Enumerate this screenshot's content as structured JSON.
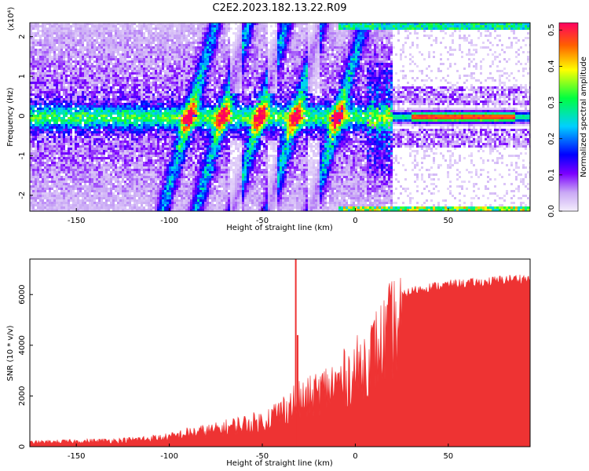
{
  "title": "C2E2.2023.182.13.22.R09",
  "chart_data": [
    {
      "type": "heatmap",
      "xlabel": "Height of straight line (km)",
      "ylabel": "Frequency (Hz)",
      "y_scale_label": "(x10⁴)",
      "xlim": [
        -175,
        94
      ],
      "ylim": [
        -2.4,
        2.35
      ],
      "x_ticks": [
        -150,
        -100,
        -50,
        0,
        50
      ],
      "y_ticks": [
        -2,
        -1,
        0,
        1,
        2
      ],
      "colorbar": {
        "label": "Normalized spectral amplitude",
        "range": [
          0.0,
          0.52
        ],
        "ticks": [
          0.0,
          0.1,
          0.2,
          0.3,
          0.4,
          0.5
        ],
        "colormap": [
          "#f4eefc",
          "#7b00ff",
          "#0000ff",
          "#00d0ff",
          "#00ff40",
          "#ffff00",
          "#ff6000",
          "#ff0060"
        ]
      },
      "features": {
        "dc_band_frequency": 0.0,
        "diagonal_streaks_center_km": [
          -90,
          -72,
          -52,
          -33,
          -10
        ],
        "upper_band_frequency": 2.3,
        "lower_band_frequency": -2.35,
        "clear_region_start_km": 20
      }
    },
    {
      "type": "area",
      "xlabel": "Height of straight line (km)",
      "ylabel": "SNR (10 * v/v)",
      "xlim": [
        -175,
        94
      ],
      "ylim": [
        0,
        7400
      ],
      "x_ticks": [
        -150,
        -100,
        -50,
        0,
        50
      ],
      "y_ticks": [
        0,
        2000,
        4000,
        6000
      ],
      "color": "#ee3333",
      "x": [
        -175,
        -150,
        -125,
        -100,
        -90,
        -75,
        -65,
        -50,
        -40,
        -33,
        -25,
        -20,
        -10,
        0,
        5,
        10,
        15,
        20,
        25,
        30,
        40,
        50,
        60,
        70,
        80,
        90,
        94
      ],
      "values": [
        200,
        250,
        300,
        450,
        650,
        800,
        1000,
        1200,
        1700,
        2100,
        2300,
        2600,
        3000,
        3600,
        4000,
        4500,
        5000,
        5600,
        6000,
        6200,
        6350,
        6450,
        6500,
        6550,
        6650,
        6700,
        6650
      ],
      "spikes": [
        {
          "x": -32,
          "value": 7400
        },
        {
          "x": -31,
          "value": 4400
        }
      ]
    }
  ]
}
